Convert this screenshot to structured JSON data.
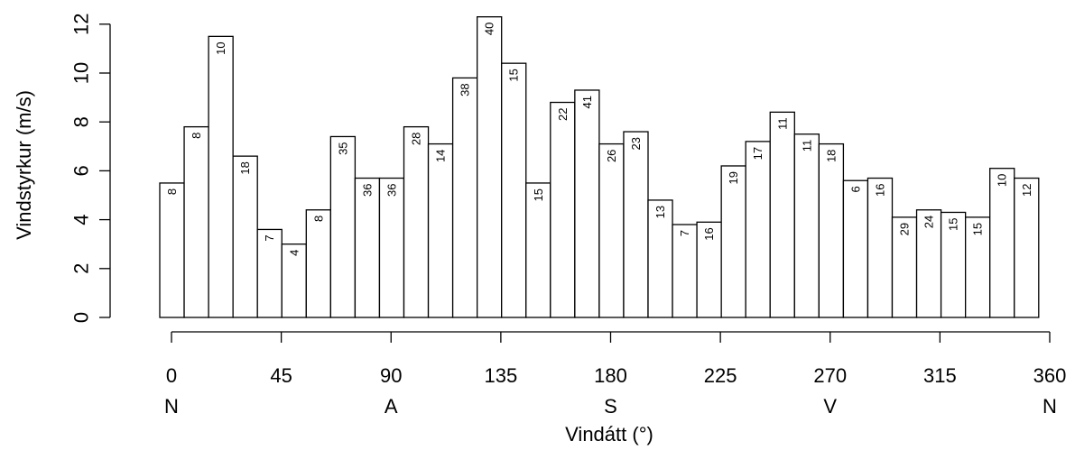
{
  "chart_data": {
    "type": "bar",
    "xlabel": "Vindátt (°)",
    "ylabel": "Vindstyrkur (m/s)",
    "xlim": [
      0,
      360
    ],
    "ylim": [
      0,
      12
    ],
    "bin_width": 10,
    "y_ticks": [
      0,
      2,
      4,
      6,
      8,
      10,
      12
    ],
    "x_ticks": [
      0,
      45,
      90,
      135,
      180,
      225,
      270,
      315,
      360
    ],
    "compass_labels": [
      {
        "at": 0,
        "label": "N"
      },
      {
        "at": 90,
        "label": "A"
      },
      {
        "at": 180,
        "label": "S"
      },
      {
        "at": 270,
        "label": "V"
      },
      {
        "at": 360,
        "label": "N"
      }
    ],
    "bins": [
      0,
      10,
      20,
      30,
      40,
      50,
      60,
      70,
      80,
      90,
      100,
      110,
      120,
      130,
      140,
      150,
      160,
      170,
      180,
      190,
      200,
      210,
      220,
      230,
      240,
      250,
      260,
      270,
      280,
      290,
      300,
      310,
      320,
      330,
      340,
      350
    ],
    "values": [
      5.5,
      7.8,
      11.5,
      6.6,
      3.6,
      3.0,
      4.4,
      7.4,
      5.7,
      5.7,
      7.8,
      7.1,
      9.8,
      12.3,
      10.4,
      5.5,
      8.8,
      9.3,
      7.1,
      7.6,
      4.8,
      3.8,
      3.9,
      6.2,
      7.2,
      8.4,
      7.5,
      7.1,
      5.6,
      5.7,
      4.1,
      4.4,
      4.3,
      4.1,
      6.1,
      5.7
    ],
    "counts": [
      "8",
      "8",
      "10",
      "18",
      "7",
      "4",
      "8",
      "35",
      "36",
      "36",
      "28",
      "14",
      "38",
      "40",
      "15",
      "15",
      "22",
      "41",
      "26",
      "23",
      "13",
      "7",
      "16",
      "19",
      "17",
      "11",
      "11",
      "18",
      "6",
      "16",
      "29",
      "24",
      "15",
      "15",
      "10",
      "12"
    ]
  }
}
